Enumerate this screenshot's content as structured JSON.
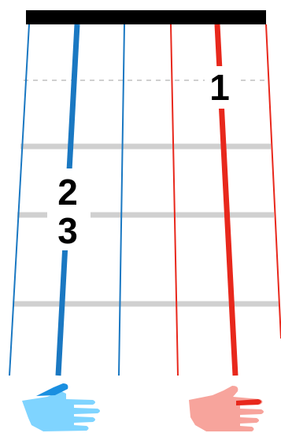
{
  "finger_labels": {
    "one": "1",
    "two": "2",
    "three": "3"
  },
  "colors": {
    "nut": "#000000",
    "left_strings": "#1a78c2",
    "right_strings": "#e8281c",
    "fret": "#d0d0d0",
    "left_hand": "#7fd4ff",
    "left_hand_finger": "#1a8fe0",
    "right_hand": "#f7a49c",
    "right_hand_finger": "#e8281c"
  },
  "icons": {
    "left_hand": "left-hand-icon",
    "right_hand": "right-hand-icon"
  }
}
